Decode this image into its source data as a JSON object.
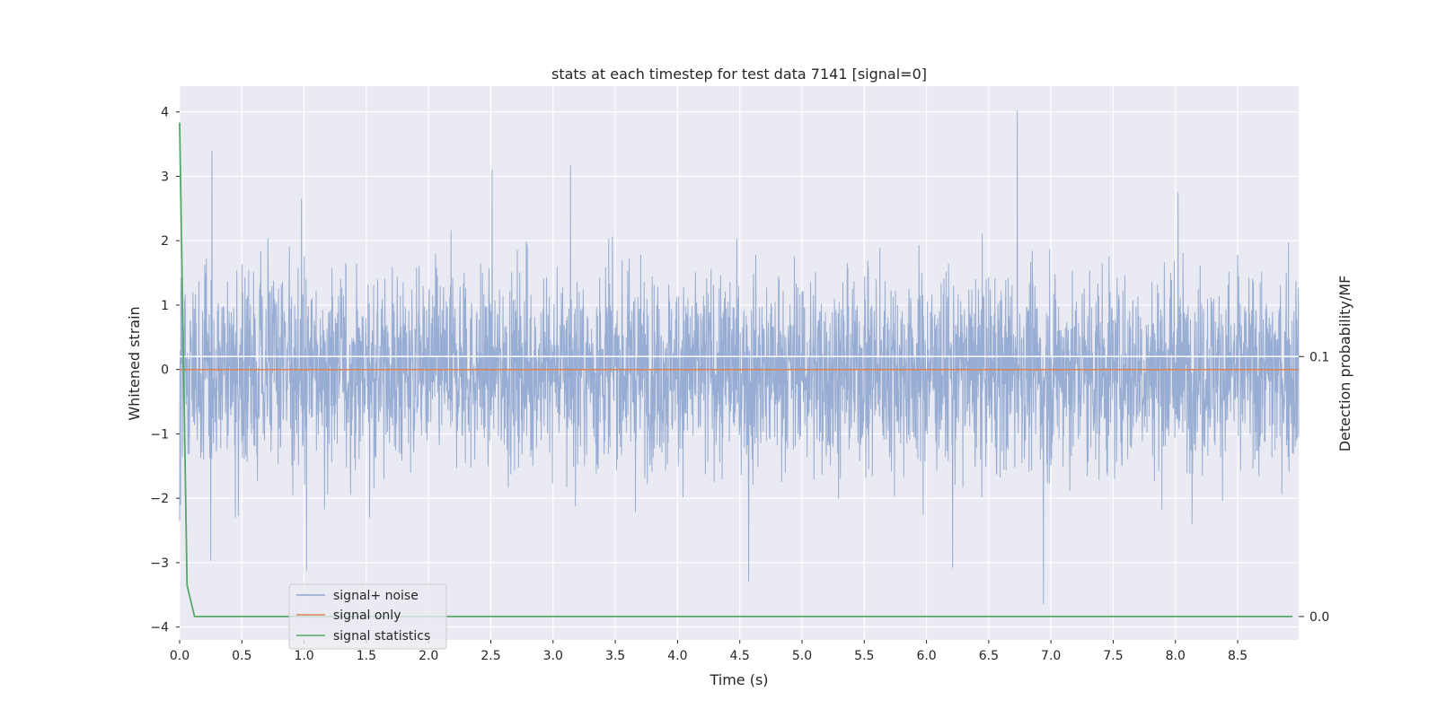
{
  "chart_data": {
    "type": "line",
    "title": "stats at each timestep for test data 7141 [signal=0]",
    "xlabel": "Time (s)",
    "ylabel": "Whitened strain",
    "ylabel_right": "Detection probability/MF",
    "xlim": [
      0.0,
      8.99
    ],
    "ylim": [
      -4.2,
      4.4
    ],
    "ylim_right": [
      -0.009,
      0.204
    ],
    "x_ticks": [
      0.0,
      0.5,
      1.0,
      1.5,
      2.0,
      2.5,
      3.0,
      3.5,
      4.0,
      4.5,
      5.0,
      5.5,
      6.0,
      6.5,
      7.0,
      7.5,
      8.0,
      8.5
    ],
    "x_tick_labels": [
      "0.0",
      "0.5",
      "1.0",
      "1.5",
      "2.0",
      "2.5",
      "3.0",
      "3.5",
      "4.0",
      "4.5",
      "5.0",
      "5.5",
      "6.0",
      "6.5",
      "7.0",
      "7.5",
      "8.0",
      "8.5"
    ],
    "y_ticks": [
      -4,
      -3,
      -2,
      -1,
      0,
      1,
      2,
      3,
      4
    ],
    "y_tick_labels": [
      "−4",
      "−3",
      "−2",
      "−1",
      "0",
      "1",
      "2",
      "3",
      "4"
    ],
    "y_right_ticks": [
      0.0,
      0.1
    ],
    "y_right_tick_labels": [
      "0.0",
      "0.1"
    ],
    "grid": true,
    "legend_position": "lower-left",
    "series": [
      {
        "name": "signal+ noise",
        "color": "#8fa6cf",
        "axis": "left",
        "x_range": [
          0.0,
          8.99
        ],
        "typical_band": [
          -1.5,
          1.9
        ],
        "notable_peaks": [
          {
            "x": 0.26,
            "y": 3.4
          },
          {
            "x": 0.98,
            "y": 2.65
          },
          {
            "x": 2.51,
            "y": 3.1
          },
          {
            "x": 3.14,
            "y": 3.18
          },
          {
            "x": 6.73,
            "y": 4.02
          },
          {
            "x": 8.02,
            "y": 2.75
          }
        ],
        "notable_troughs": [
          {
            "x": 0.0,
            "y": -2.35
          },
          {
            "x": 0.25,
            "y": -2.97
          },
          {
            "x": 1.02,
            "y": -3.12
          },
          {
            "x": 4.57,
            "y": -3.3
          },
          {
            "x": 6.21,
            "y": -3.08
          },
          {
            "x": 6.94,
            "y": -3.65
          }
        ]
      },
      {
        "name": "signal only",
        "color": "#dd8452",
        "axis": "left",
        "x": [
          0.0,
          8.99
        ],
        "y": [
          0.0,
          0.0
        ]
      },
      {
        "name": "signal statistics",
        "color": "#55a868",
        "axis": "right",
        "x": [
          0.0,
          0.06,
          0.12,
          0.5,
          1.0,
          2.0,
          3.0,
          4.0,
          5.0,
          6.0,
          7.0,
          8.0,
          8.94
        ],
        "y": [
          0.19,
          0.012,
          0.0,
          0.0,
          0.0,
          0.0,
          0.0,
          0.0,
          0.0,
          0.0,
          0.0,
          0.0,
          0.0
        ]
      }
    ],
    "hlines_right": [
      0.1
    ]
  }
}
